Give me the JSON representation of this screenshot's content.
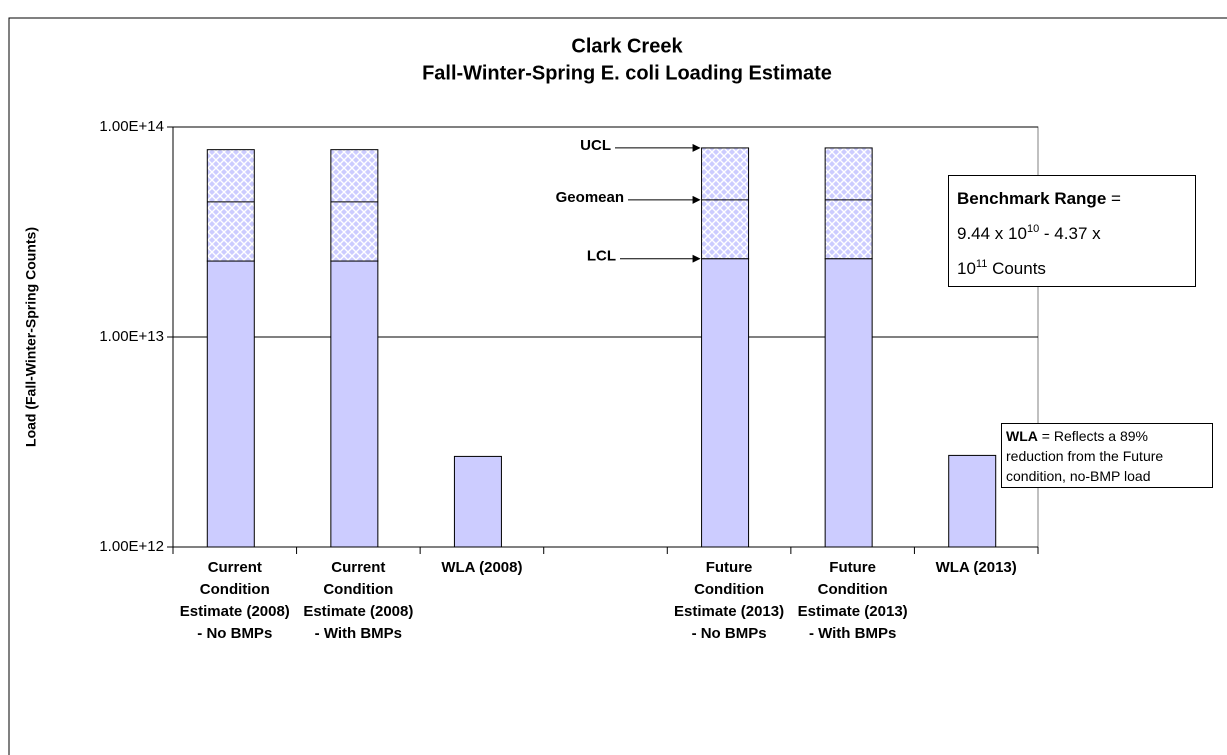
{
  "chart_data": {
    "type": "bar",
    "title": [
      "Clark Creek",
      "Fall-Winter-Spring E. coli Loading Estimate"
    ],
    "ylabel": "Load (Fall-Winter-Spring Counts)",
    "log_y": true,
    "grid": true,
    "ylim": [
      1000000000000,
      100000000000000
    ],
    "yticks": [
      {
        "value": 1000000000000,
        "label": "1.00E+12"
      },
      {
        "value": 10000000000000,
        "label": "1.00E+13"
      },
      {
        "value": 100000000000000,
        "label": "1.00E+14"
      }
    ],
    "categories": [
      "Current Condition Estimate (2008) - No BMPs",
      "Current Condition Estimate (2008) - With BMPs",
      "WLA (2008)",
      null,
      "Future Condition Estimate (2013) - No BMPs",
      "Future Condition Estimate (2013) - With BMPs",
      "WLA (2013)"
    ],
    "series": [
      {
        "name": "LCL",
        "color": "#ccccff",
        "values": [
          23000000000000,
          23000000000000,
          null,
          null,
          23600000000000,
          23600000000000,
          null
        ]
      },
      {
        "name": "Geomean",
        "color": "#ccccff",
        "values": [
          44000000000000,
          44000000000000,
          null,
          null,
          45000000000000,
          45000000000000,
          null
        ]
      },
      {
        "name": "UCL",
        "color": "#ccccff",
        "values": [
          78000000000000,
          78000000000000,
          null,
          null,
          79500000000000,
          79500000000000,
          null
        ]
      },
      {
        "name": "WLA",
        "color": "#ccccff",
        "values": [
          null,
          null,
          2700000000000,
          null,
          null,
          null,
          2730000000000
        ]
      }
    ],
    "benchmark_box": {
      "bold": "Benchmark Range",
      "rest": " =",
      "line2": [
        "9.44 x 10",
        "10",
        " - 4.37 x"
      ],
      "line3": [
        "10",
        "11",
        " Counts"
      ]
    },
    "wla_box": {
      "bold": "WLA",
      "lines": [
        " = Reflects a 89%",
        "reduction from the Future",
        "condition, no-BMP load"
      ]
    }
  }
}
